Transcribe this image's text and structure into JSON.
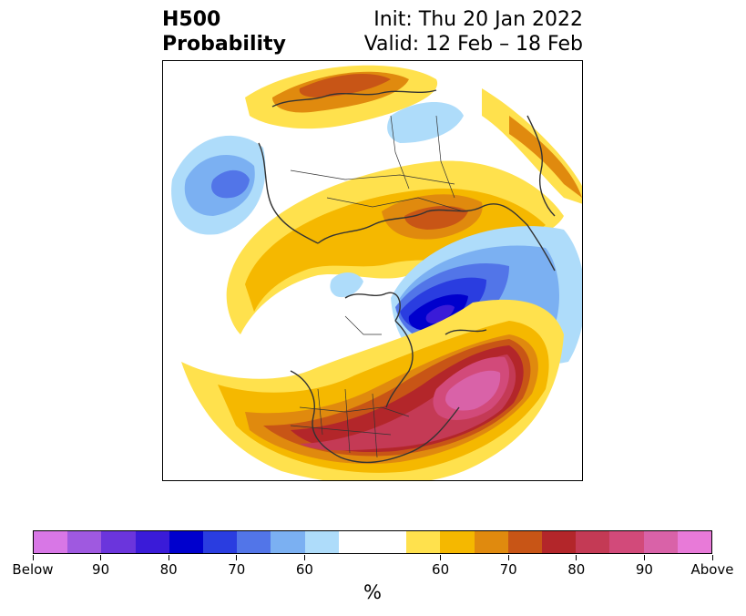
{
  "header": {
    "title_line1": "H500",
    "title_line2": "Probability",
    "init": "Init: Thu 20 Jan 2022",
    "valid": "Valid: 12 Feb – 18 Feb"
  },
  "colorbar": {
    "colors": [
      "#d877e6",
      "#9f59e0",
      "#6b35dc",
      "#3a1bd8",
      "#0000cd",
      "#2a3de0",
      "#5275e8",
      "#7bb0f2",
      "#aedcfa",
      "#ffffff",
      "#ffffff",
      "#ffe14d",
      "#f5b800",
      "#e08a0e",
      "#c85516",
      "#b3262a",
      "#c43a55",
      "#d24a7a",
      "#d962a8",
      "#e87ad8"
    ],
    "tick_labels": [
      "Below",
      "90",
      "80",
      "70",
      "60",
      "60",
      "70",
      "80",
      "90",
      "Above"
    ],
    "unit": "%"
  },
  "palette": {
    "blue_1": "#aedcfa",
    "blue_2": "#7bb0f2",
    "blue_3": "#5275e8",
    "blue_4": "#2a3de0",
    "blue_5": "#0000cd",
    "blue_6": "#3a1bd8",
    "yellow": "#ffe14d",
    "gold": "#f5b800",
    "orange": "#e08a0e",
    "dark_orange": "#c85516",
    "red": "#b3262a",
    "crimson": "#c43a55",
    "rose": "#d24a7a",
    "pink": "#d962a8",
    "coast": "#333333"
  }
}
